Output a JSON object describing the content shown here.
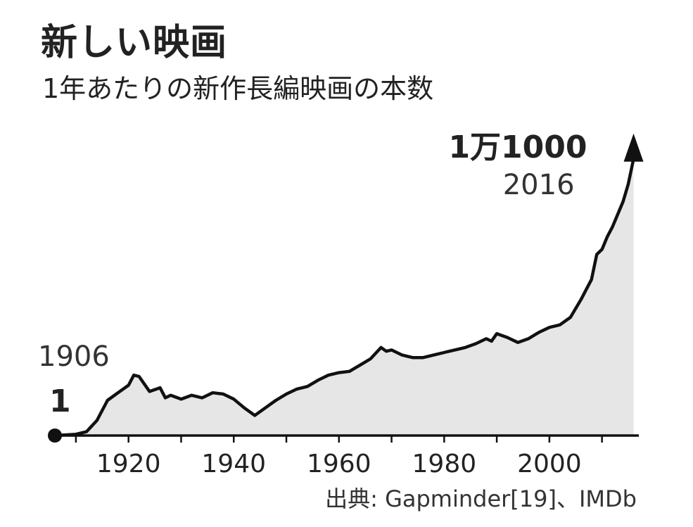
{
  "title": "新しい映画",
  "subtitle": "1年あたりの新作長編映画の本数",
  "source": "出典: Gapminder[19]、IMDb",
  "colors": {
    "line": "#111111",
    "area": "#e6e6e6",
    "text": "#222222"
  },
  "chart_data": {
    "type": "area",
    "title": "新しい映画",
    "subtitle": "1年あたりの新作長編映画の本数",
    "xlabel": "",
    "ylabel": "",
    "xlim": [
      1906,
      2017
    ],
    "ylim": [
      0,
      12000
    ],
    "grid": false,
    "legend": "none",
    "x_ticks": [
      1920,
      1940,
      1960,
      1980,
      2000
    ],
    "series": [
      {
        "x": [
          1906,
          1910,
          1912,
          1914,
          1916,
          1918,
          1920,
          1921,
          1922,
          1924,
          1926,
          1927,
          1928,
          1930,
          1932,
          1934,
          1936,
          1938,
          1940,
          1942,
          1944,
          1946,
          1948,
          1950,
          1952,
          1954,
          1956,
          1958,
          1960,
          1962,
          1964,
          1966,
          1968,
          1969,
          1970,
          1972,
          1974,
          1976,
          1978,
          1980,
          1982,
          1984,
          1986,
          1988,
          1989,
          1990,
          1992,
          1994,
          1996,
          1998,
          2000,
          2002,
          2004,
          2006,
          2007,
          2008,
          2009,
          2010,
          2011,
          2012,
          2013,
          2014,
          2015,
          2016
        ],
        "values": [
          1,
          50,
          150,
          600,
          1400,
          1700,
          2000,
          2400,
          2350,
          1750,
          1900,
          1500,
          1600,
          1450,
          1600,
          1500,
          1700,
          1650,
          1450,
          1100,
          800,
          1100,
          1400,
          1650,
          1850,
          1950,
          2200,
          2400,
          2500,
          2550,
          2800,
          3050,
          3500,
          3350,
          3400,
          3200,
          3100,
          3100,
          3200,
          3300,
          3400,
          3500,
          3650,
          3850,
          3750,
          4050,
          3900,
          3700,
          3850,
          4100,
          4300,
          4400,
          4700,
          5400,
          5800,
          6200,
          7200,
          7400,
          7900,
          8300,
          8800,
          9300,
          10000,
          11000
        ]
      }
    ],
    "annotations": [
      {
        "year": "1906",
        "value": "1"
      },
      {
        "year": "2016",
        "value": "1万1000"
      }
    ]
  }
}
